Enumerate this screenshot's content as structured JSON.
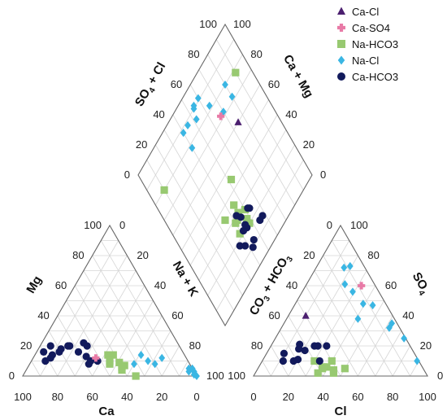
{
  "chart_data": {
    "type": "scatter",
    "subtype": "piper-diagram",
    "ticks": [
      "0",
      "20",
      "40",
      "60",
      "80",
      "100"
    ],
    "axes": {
      "cation_left": "Mg",
      "cation_right": "Na + K",
      "cation_bottom": "Ca",
      "anion_left": "CO3 + HCO3",
      "anion_right": "SO4",
      "anion_bottom": "Cl",
      "diamond_left": "SO4 + Cl",
      "diamond_right": "Ca + Mg"
    },
    "grid": true,
    "legend_position": "top-right",
    "series": [
      {
        "name": "Ca-Cl",
        "marker": "triangle",
        "color": "#4b1f6f",
        "cation_points": [],
        "anion_points": [
          [
            50,
            40,
            10
          ]
        ],
        "diamond_points": [
          [
            60,
            75
          ]
        ]
      },
      {
        "name": "Ca-SO4",
        "marker": "plus",
        "color": "#e87aa6",
        "cation_points": [
          [
            52,
            12,
            36
          ]
        ],
        "anion_points": [
          [
            8,
            60,
            32
          ]
        ],
        "diamond_points": [
          [
            72,
            67
          ]
        ]
      },
      {
        "name": "Na-HCO3",
        "marker": "square",
        "color": "#98c971",
        "cation_points": [
          [
            44,
            14,
            42
          ],
          [
            41,
            14,
            45
          ],
          [
            46,
            8,
            46
          ],
          [
            40,
            9,
            51
          ],
          [
            40,
            6,
            54
          ],
          [
            41,
            4,
            55
          ],
          [
            35,
            0,
            65
          ],
          [
            45,
            10,
            45
          ],
          [
            38,
            7,
            55
          ]
        ],
        "anion_points": [
          [
            55,
            6,
            39
          ],
          [
            50,
            10,
            40
          ],
          [
            53,
            2,
            45
          ],
          [
            52,
            4,
            44
          ],
          [
            57,
            6,
            37
          ],
          [
            58,
            5,
            37
          ],
          [
            60,
            10,
            30
          ],
          [
            62,
            2,
            36
          ],
          [
            45,
            5,
            50
          ]
        ],
        "diamond_points": [
          [
            27,
            50
          ],
          [
            30,
            45
          ],
          [
            23,
            48
          ],
          [
            28,
            42
          ],
          [
            20,
            48
          ],
          [
            35,
            35
          ],
          [
            45,
            52
          ],
          [
            22,
            39
          ],
          [
            28,
            40
          ],
          [
            35,
            45
          ],
          [
            78,
            90
          ],
          [
            80,
            10
          ]
        ]
      },
      {
        "name": "Na-Cl",
        "marker": "diamond",
        "color": "#3ab6e3",
        "cation_points": [
          [
            32,
            8,
            60
          ],
          [
            25,
            14,
            61
          ],
          [
            23,
            10,
            67
          ],
          [
            20,
            8,
            72
          ],
          [
            14,
            12,
            74
          ],
          [
            2,
            5,
            93
          ],
          [
            0,
            5,
            95
          ],
          [
            0,
            3,
            97
          ],
          [
            0,
            0,
            100
          ],
          [
            3,
            3,
            94
          ],
          [
            1,
            1,
            98
          ]
        ],
        "anion_points": [
          [
            12,
            72,
            16
          ],
          [
            8,
            73,
            19
          ],
          [
            17,
            61,
            22
          ],
          [
            15,
            56,
            29
          ],
          [
            13,
            48,
            39
          ],
          [
            8,
            47,
            45
          ],
          [
            21,
            38,
            41
          ],
          [
            3,
            35,
            62
          ],
          [
            1,
            10,
            89
          ],
          [
            1,
            25,
            74
          ],
          [
            6,
            32,
            62
          ]
        ],
        "diamond_points": [
          [
            72,
            80
          ],
          [
            80,
            80
          ],
          [
            72,
            70
          ],
          [
            82,
            64
          ],
          [
            91,
            60
          ],
          [
            85,
            52
          ],
          [
            78,
            40
          ],
          [
            90,
            54
          ],
          [
            91,
            55
          ],
          [
            88,
            45
          ],
          [
            88,
            40
          ]
        ]
      },
      {
        "name": "Ca-HCO3",
        "marker": "circle",
        "color": "#121a5c",
        "cation_points": [
          [
            63,
            20,
            17
          ],
          [
            64,
            20,
            16
          ],
          [
            69,
            18,
            13
          ],
          [
            71,
            16,
            13
          ],
          [
            78,
            12,
            10
          ],
          [
            80,
            16,
            4
          ],
          [
            76,
            14,
            10
          ],
          [
            60,
            16,
            24
          ],
          [
            58,
            8,
            34
          ],
          [
            56,
            10,
            34
          ],
          [
            53,
            20,
            27
          ],
          [
            54,
            22,
            24
          ],
          [
            52,
            10,
            38
          ],
          [
            57,
            13,
            30
          ],
          [
            82,
            10,
            8
          ],
          [
            74,
            20,
            6
          ]
        ],
        "anion_points": [
          [
            75,
            15,
            10
          ],
          [
            78,
            10,
            12
          ],
          [
            69,
            11,
            20
          ],
          [
            72,
            10,
            18
          ],
          [
            63,
            21,
            16
          ],
          [
            55,
            20,
            25
          ],
          [
            62,
            17,
            21
          ],
          [
            53,
            20,
            27
          ],
          [
            48,
            20,
            32
          ],
          [
            65,
            18,
            17
          ],
          [
            57,
            10,
            33
          ]
        ],
        "diamond_points": [
          [
            15,
            58
          ],
          [
            15,
            55
          ],
          [
            12,
            45
          ],
          [
            10,
            42
          ],
          [
            20,
            45
          ],
          [
            18,
            35
          ],
          [
            21,
            42
          ],
          [
            26,
            52
          ],
          [
            15,
            38
          ],
          [
            25,
            53
          ],
          [
            27,
            45
          ],
          [
            30,
            43
          ],
          [
            22,
            45
          ]
        ]
      }
    ]
  }
}
